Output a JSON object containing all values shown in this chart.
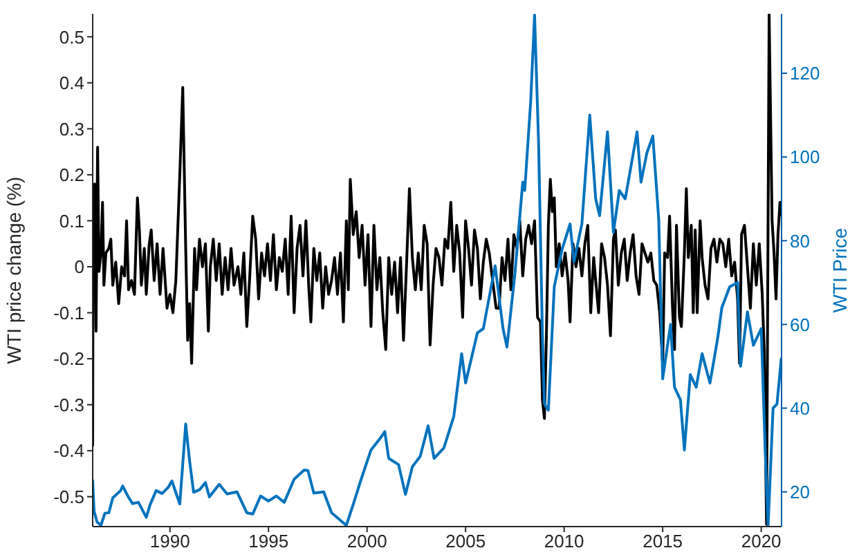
{
  "chart_data": {
    "type": "line",
    "ylabel": "WTI price change (%)",
    "y2label": "WTI Price",
    "xlim": [
      1986.08,
      2021.03
    ],
    "xticks": [
      1990,
      1995,
      2000,
      2005,
      2010,
      2015,
      2020
    ],
    "ylim": [
      -0.565,
      0.55
    ],
    "yticks": [
      -0.5,
      -0.4,
      -0.3,
      -0.2,
      -0.1,
      0,
      0.1,
      0.2,
      0.3,
      0.4,
      0.5
    ],
    "y2lim": [
      11.7,
      134.2
    ],
    "y2ticks": [
      20,
      40,
      60,
      80,
      100,
      120
    ],
    "marker": "none",
    "line_style": "solid",
    "series": [
      {
        "color": "#000000",
        "x": [
          1986.08,
          1986.1,
          1986.18,
          1986.25,
          1986.33,
          1986.4,
          1986.5,
          1986.58,
          1986.65,
          1986.75,
          1986.9,
          1987.0,
          1987.1,
          1987.25,
          1987.4,
          1987.55,
          1987.7,
          1987.8,
          1987.9,
          1988.05,
          1988.2,
          1988.35,
          1988.45,
          1988.55,
          1988.7,
          1988.8,
          1988.95,
          1989.05,
          1989.2,
          1989.35,
          1989.5,
          1989.65,
          1989.85,
          1990.0,
          1990.15,
          1990.3,
          1990.5,
          1990.65,
          1990.8,
          1990.9,
          1991.0,
          1991.1,
          1991.25,
          1991.35,
          1991.5,
          1991.65,
          1991.8,
          1991.95,
          1992.05,
          1992.2,
          1992.35,
          1992.5,
          1992.65,
          1992.8,
          1992.95,
          1993.1,
          1993.25,
          1993.45,
          1993.6,
          1993.75,
          1993.9,
          1994.05,
          1994.2,
          1994.35,
          1994.5,
          1994.65,
          1994.8,
          1994.95,
          1995.1,
          1995.25,
          1995.4,
          1995.55,
          1995.7,
          1995.85,
          1996.0,
          1996.15,
          1996.3,
          1996.45,
          1996.6,
          1996.75,
          1996.9,
          1997.05,
          1997.15,
          1997.3,
          1997.45,
          1997.6,
          1997.75,
          1997.9,
          1998.05,
          1998.2,
          1998.35,
          1998.5,
          1998.65,
          1998.8,
          1998.95,
          1999.05,
          1999.15,
          1999.3,
          1999.45,
          1999.6,
          1999.75,
          1999.9,
          2000.05,
          2000.2,
          2000.35,
          2000.5,
          2000.65,
          2000.8,
          2000.95,
          2001.1,
          2001.25,
          2001.4,
          2001.55,
          2001.7,
          2001.85,
          2002.0,
          2002.15,
          2002.3,
          2002.45,
          2002.6,
          2002.75,
          2002.9,
          2003.05,
          2003.2,
          2003.35,
          2003.5,
          2003.65,
          2003.8,
          2003.95,
          2004.1,
          2004.25,
          2004.4,
          2004.55,
          2004.7,
          2004.85,
          2005.0,
          2005.15,
          2005.3,
          2005.45,
          2005.6,
          2005.75,
          2005.9,
          2006.05,
          2006.2,
          2006.4,
          2006.55,
          2006.7,
          2006.85,
          2007.0,
          2007.15,
          2007.3,
          2007.45,
          2007.6,
          2007.75,
          2007.9,
          2008.05,
          2008.2,
          2008.35,
          2008.5,
          2008.65,
          2008.8,
          2008.9,
          2009.0,
          2009.1,
          2009.2,
          2009.3,
          2009.4,
          2009.5,
          2009.6,
          2009.75,
          2009.9,
          2010.05,
          2010.2,
          2010.3,
          2010.45,
          2010.6,
          2010.75,
          2010.9,
          2011.05,
          2011.2,
          2011.35,
          2011.5,
          2011.6,
          2011.75,
          2011.9,
          2012.05,
          2012.2,
          2012.35,
          2012.5,
          2012.6,
          2012.75,
          2012.9,
          2013.05,
          2013.2,
          2013.35,
          2013.5,
          2013.65,
          2013.8,
          2013.95,
          2014.1,
          2014.25,
          2014.4,
          2014.55,
          2014.7,
          2014.85,
          2015.0,
          2015.1,
          2015.25,
          2015.35,
          2015.5,
          2015.6,
          2015.7,
          2015.85,
          2015.95,
          2016.1,
          2016.2,
          2016.3,
          2016.45,
          2016.55,
          2016.65,
          2016.75,
          2016.9,
          2017.0,
          2017.15,
          2017.3,
          2017.45,
          2017.6,
          2017.75,
          2017.9,
          2018.05,
          2018.2,
          2018.35,
          2018.5,
          2018.65,
          2018.8,
          2018.9,
          2019.0,
          2019.15,
          2019.3,
          2019.45,
          2019.6,
          2019.75,
          2019.9,
          2020.05,
          2020.15,
          2020.27,
          2020.4,
          2020.55,
          2020.65,
          2020.75,
          2020.85,
          2020.95,
          2021.02
        ],
        "values": [
          -0.39,
          0.05,
          0.18,
          -0.14,
          0.26,
          -0.01,
          0.03,
          0.14,
          -0.04,
          0.03,
          0.04,
          0.06,
          -0.04,
          0.01,
          -0.08,
          0.0,
          -0.02,
          0.1,
          -0.05,
          -0.03,
          -0.06,
          0.15,
          0.08,
          -0.04,
          0.04,
          -0.06,
          0.05,
          0.08,
          -0.03,
          0.05,
          -0.06,
          0.04,
          -0.09,
          -0.06,
          -0.1,
          -0.03,
          0.2,
          0.39,
          0.04,
          -0.16,
          -0.08,
          -0.21,
          0.04,
          -0.05,
          0.06,
          0.0,
          0.05,
          -0.14,
          0.0,
          0.06,
          -0.03,
          0.05,
          -0.06,
          0.02,
          -0.05,
          0.04,
          -0.04,
          0.0,
          -0.06,
          0.03,
          -0.13,
          -0.02,
          0.11,
          0.06,
          -0.07,
          0.03,
          -0.02,
          0.05,
          -0.03,
          0.07,
          -0.05,
          0.02,
          -0.01,
          0.06,
          -0.06,
          0.11,
          -0.1,
          0.04,
          0.09,
          -0.02,
          0.1,
          -0.05,
          -0.12,
          0.04,
          -0.03,
          0.03,
          -0.09,
          0.0,
          -0.06,
          -0.03,
          0.02,
          -0.06,
          0.03,
          -0.12,
          0.1,
          -0.05,
          0.19,
          0.07,
          0.12,
          0.02,
          0.09,
          -0.04,
          0.07,
          -0.13,
          0.09,
          -0.05,
          0.02,
          -0.1,
          -0.18,
          0.02,
          -0.06,
          0.01,
          -0.1,
          0.02,
          -0.16,
          0.0,
          0.17,
          0.02,
          -0.05,
          0.03,
          -0.05,
          0.09,
          0.05,
          -0.17,
          -0.04,
          0.04,
          0.02,
          -0.04,
          0.06,
          0.04,
          0.14,
          -0.01,
          0.09,
          0.03,
          -0.11,
          0.1,
          0.04,
          -0.04,
          0.08,
          0.04,
          -0.07,
          0.01,
          0.06,
          0.03,
          -0.04,
          -0.09,
          -0.09,
          0.02,
          -0.03,
          0.06,
          -0.05,
          0.07,
          0.04,
          0.1,
          -0.02,
          0.06,
          0.09,
          0.05,
          0.1,
          -0.11,
          -0.12,
          -0.29,
          -0.33,
          -0.15,
          0.09,
          0.19,
          0.12,
          0.15,
          0.0,
          0.05,
          -0.02,
          0.03,
          -0.03,
          -0.12,
          0.05,
          0.0,
          0.04,
          -0.02,
          0.05,
          0.09,
          -0.1,
          0.02,
          -0.03,
          -0.1,
          0.05,
          0.02,
          -0.04,
          -0.15,
          0.06,
          0.08,
          -0.04,
          0.03,
          0.06,
          -0.03,
          0.03,
          0.07,
          -0.02,
          -0.06,
          0.05,
          0.03,
          0.01,
          0.03,
          -0.03,
          -0.04,
          -0.1,
          -0.21,
          0.03,
          0.02,
          0.11,
          -0.09,
          -0.18,
          0.09,
          -0.11,
          -0.13,
          0.03,
          0.17,
          0.02,
          0.09,
          -0.1,
          0.08,
          -0.1,
          0.1,
          0.02,
          -0.04,
          -0.07,
          0.04,
          0.06,
          0.01,
          0.06,
          0.05,
          0.0,
          0.06,
          -0.02,
          0.01,
          -0.07,
          -0.21,
          0.07,
          0.09,
          0.0,
          -0.09,
          0.05,
          -0.04,
          0.05,
          -0.06,
          -0.18,
          -0.56,
          0.55,
          0.1,
          0.03,
          -0.07,
          0.07,
          0.14,
          0.11
        ]
      },
      {
        "color": "#0072bd",
        "axis": "y2",
        "x": [
          1986.08,
          1986.15,
          1986.3,
          1986.5,
          1986.7,
          1986.9,
          1987.1,
          1987.5,
          1987.6,
          1987.9,
          1988.1,
          1988.4,
          1988.8,
          1989.0,
          1989.3,
          1989.6,
          1989.9,
          1990.1,
          1990.5,
          1990.8,
          1991.0,
          1991.2,
          1991.5,
          1991.8,
          1992.0,
          1992.5,
          1992.9,
          1993.4,
          1993.9,
          1994.2,
          1994.6,
          1995.0,
          1995.4,
          1995.8,
          1996.3,
          1996.8,
          1997.0,
          1997.3,
          1997.8,
          1998.2,
          1998.6,
          1998.95,
          1999.3,
          1999.7,
          2000.2,
          2000.7,
          2000.9,
          2001.1,
          2001.6,
          2001.95,
          2002.3,
          2002.7,
          2003.1,
          2003.4,
          2003.9,
          2004.4,
          2004.8,
          2005.0,
          2005.6,
          2005.9,
          2006.5,
          2006.9,
          2007.1,
          2007.5,
          2007.9,
          2008.0,
          2008.3,
          2008.5,
          2008.7,
          2008.9,
          2009.0,
          2009.2,
          2009.5,
          2009.9,
          2010.3,
          2010.5,
          2010.9,
          2011.3,
          2011.6,
          2011.8,
          2012.2,
          2012.5,
          2012.8,
          2013.1,
          2013.7,
          2013.9,
          2014.2,
          2014.5,
          2014.8,
          2015.0,
          2015.4,
          2015.6,
          2015.9,
          2016.1,
          2016.4,
          2016.7,
          2017.0,
          2017.4,
          2017.8,
          2018.0,
          2018.4,
          2018.8,
          2018.95,
          2019.3,
          2019.6,
          2020.0,
          2020.2,
          2020.3,
          2020.35,
          2020.6,
          2020.8,
          2021.02
        ],
        "values": [
          22.9,
          15.4,
          12.8,
          12.0,
          14.9,
          15.0,
          18.6,
          20.3,
          21.4,
          18.7,
          17.2,
          17.5,
          13.9,
          17.0,
          20.3,
          19.6,
          21.0,
          22.6,
          17.1,
          36.2,
          27.3,
          19.9,
          20.5,
          22.2,
          18.8,
          21.8,
          19.5,
          20.0,
          15.0,
          14.7,
          19.0,
          17.8,
          19.0,
          17.5,
          23.0,
          25.2,
          25.1,
          19.7,
          20.0,
          15.0,
          13.4,
          12.0,
          17.0,
          23.0,
          30.0,
          33.0,
          34.4,
          28.0,
          26.5,
          19.4,
          26.0,
          28.5,
          35.8,
          28.0,
          30.5,
          38.0,
          53.0,
          46.0,
          58.0,
          59.0,
          74.0,
          59.0,
          54.6,
          72.0,
          94.0,
          92.0,
          113.0,
          133.9,
          104.0,
          57.0,
          41.0,
          39.5,
          69.0,
          78.0,
          84.0,
          75.0,
          84.0,
          110.0,
          90.0,
          86.0,
          106.0,
          82.0,
          92.0,
          90.0,
          106.0,
          94.0,
          101.0,
          105.0,
          85.0,
          47.0,
          60.0,
          45.0,
          42.0,
          30.0,
          48.0,
          45.0,
          53.0,
          46.0,
          57.0,
          64.0,
          69.0,
          70.0,
          50.0,
          63.0,
          55.0,
          59.0,
          30.0,
          17.0,
          12.0,
          40.0,
          41.0,
          52.0
        ]
      }
    ]
  }
}
